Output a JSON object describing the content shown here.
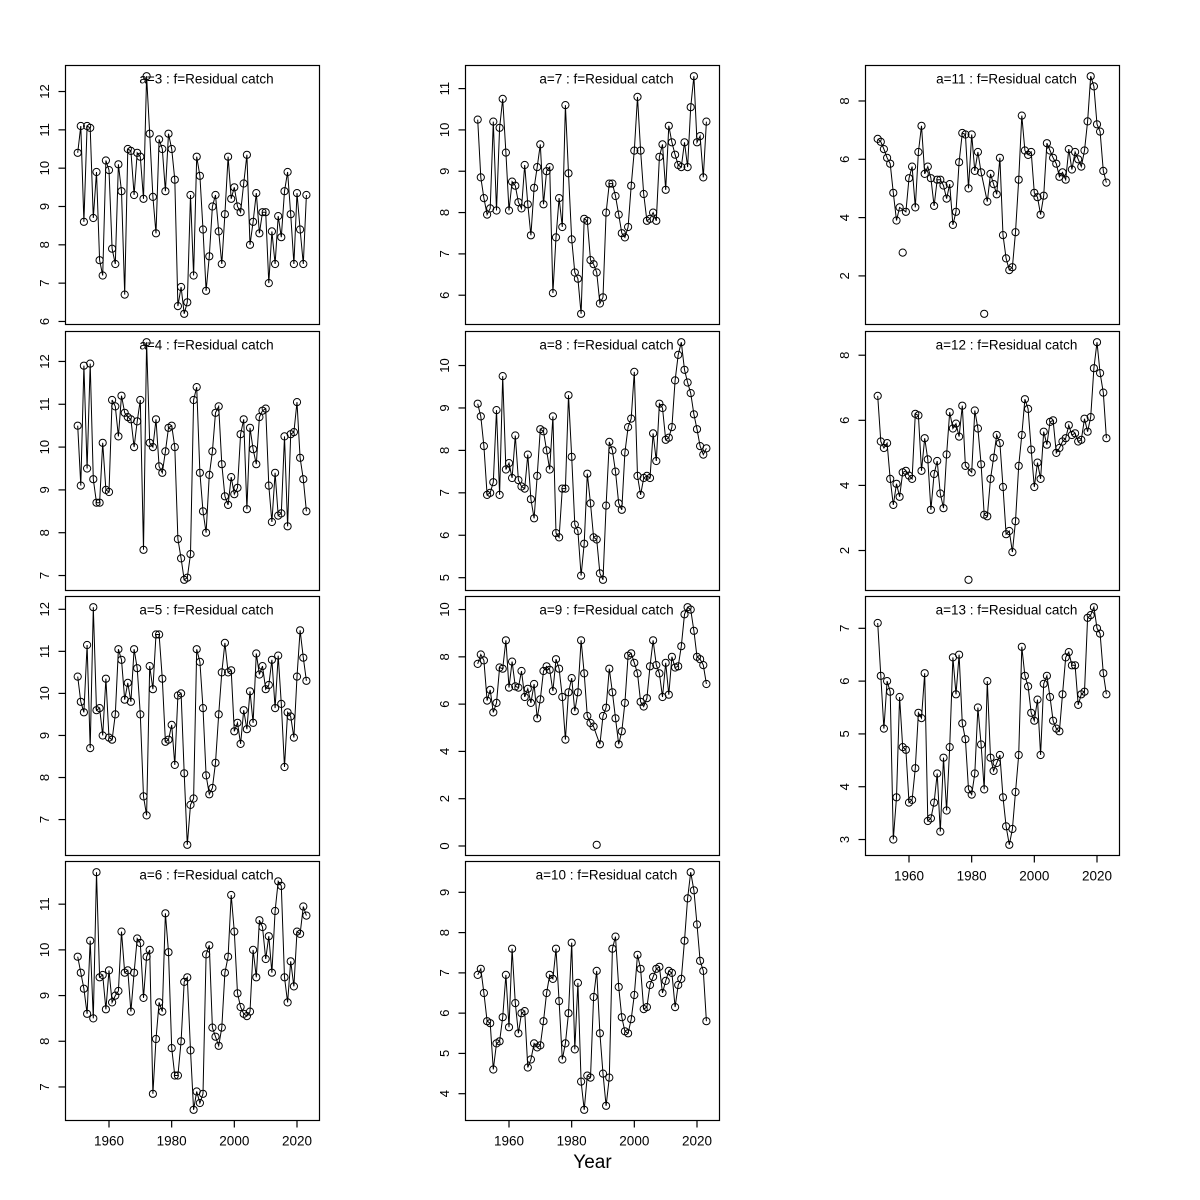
{
  "figure": {
    "xlabel": "Year",
    "x_ticks": [
      1960,
      1980,
      2000,
      2020
    ],
    "start_year": 1950,
    "end_year": 2023,
    "title_color": "#878787",
    "axis_color": "#000000",
    "background": "#ffffff"
  },
  "chart_data": {
    "type": "scatter+line",
    "x_axis": "Year",
    "x_range": [
      1950,
      2023
    ],
    "panels": [
      {
        "id": "a3",
        "title": "a=3  :  f=Residual catch",
        "col": 1,
        "row": 1,
        "show_xaxis": false,
        "ylim": [
          6.2,
          12.4
        ],
        "yticks": [
          6,
          7,
          8,
          9,
          10,
          11,
          12
        ],
        "outlier_years": [],
        "values": [
          10.4,
          11.1,
          8.6,
          11.1,
          11.05,
          8.7,
          9.9,
          7.6,
          7.2,
          10.2,
          9.95,
          7.9,
          7.5,
          10.1,
          9.4,
          6.7,
          10.5,
          10.45,
          9.3,
          10.4,
          10.3,
          9.2,
          12.4,
          10.9,
          9.25,
          8.3,
          10.75,
          10.5,
          9.4,
          10.9,
          10.5,
          9.7,
          6.4,
          6.9,
          6.2,
          6.5,
          9.3,
          7.2,
          10.3,
          9.8,
          8.4,
          6.8,
          7.7,
          9.0,
          9.3,
          8.35,
          7.5,
          8.8,
          10.3,
          9.2,
          9.5,
          9.0,
          8.85,
          9.6,
          10.35,
          8.0,
          8.6,
          9.35,
          8.3,
          8.85,
          8.85,
          7.0,
          8.35,
          7.5,
          8.75,
          8.2,
          9.4,
          9.9,
          8.8,
          7.5,
          9.35,
          8.4,
          7.5,
          9.3
        ]
      },
      {
        "id": "a4",
        "title": "a=4  :  f=Residual catch",
        "col": 1,
        "row": 2,
        "show_xaxis": false,
        "ylim": [
          6.9,
          12.45
        ],
        "yticks": [
          7,
          8,
          9,
          10,
          11,
          12
        ],
        "outlier_years": [],
        "values": [
          10.5,
          9.1,
          11.9,
          9.5,
          11.95,
          9.25,
          8.7,
          8.7,
          10.1,
          9.0,
          8.95,
          11.1,
          10.95,
          10.25,
          11.2,
          10.8,
          10.7,
          10.65,
          10.0,
          10.6,
          11.1,
          7.6,
          12.45,
          10.1,
          10.0,
          10.65,
          9.55,
          9.4,
          9.9,
          10.45,
          10.5,
          10.0,
          7.85,
          7.4,
          6.9,
          6.95,
          7.5,
          11.1,
          11.4,
          9.4,
          8.5,
          8.0,
          9.35,
          9.9,
          10.8,
          10.95,
          9.6,
          8.85,
          8.65,
          9.3,
          8.9,
          9.05,
          10.3,
          10.65,
          8.55,
          10.45,
          9.95,
          9.6,
          10.7,
          10.85,
          10.9,
          9.1,
          8.25,
          9.4,
          8.4,
          8.45,
          10.25,
          8.15,
          10.3,
          10.35,
          11.05,
          9.75,
          9.25,
          8.5
        ]
      },
      {
        "id": "a5",
        "title": "a=5  :  f=Residual catch",
        "col": 1,
        "row": 3,
        "show_xaxis": false,
        "ylim": [
          6.4,
          12.05
        ],
        "yticks": [
          7,
          8,
          9,
          10,
          11,
          12
        ],
        "outlier_years": [],
        "values": [
          10.4,
          9.8,
          9.55,
          11.15,
          8.7,
          12.05,
          9.6,
          9.65,
          9.0,
          10.35,
          8.95,
          8.9,
          9.5,
          11.05,
          10.8,
          9.85,
          10.25,
          9.8,
          11.05,
          10.6,
          9.5,
          7.55,
          7.1,
          10.65,
          10.1,
          11.4,
          11.4,
          10.35,
          8.85,
          8.9,
          9.25,
          8.3,
          9.95,
          10.0,
          8.1,
          6.4,
          7.35,
          7.5,
          11.05,
          10.75,
          9.65,
          8.05,
          7.6,
          7.75,
          8.35,
          9.5,
          10.5,
          11.2,
          10.5,
          10.55,
          9.1,
          9.3,
          8.8,
          9.6,
          9.15,
          10.05,
          9.3,
          10.95,
          10.45,
          10.65,
          10.1,
          10.2,
          10.8,
          9.65,
          10.9,
          9.75,
          8.25,
          9.55,
          9.45,
          8.95,
          10.4,
          11.5,
          10.85,
          10.3
        ]
      },
      {
        "id": "a6",
        "title": "a=6  :  f=Residual catch",
        "col": 1,
        "row": 4,
        "show_xaxis": true,
        "ylim": [
          6.5,
          11.7
        ],
        "yticks": [
          7,
          8,
          9,
          10,
          11
        ],
        "outlier_years": [],
        "values": [
          9.85,
          9.5,
          9.15,
          8.6,
          10.2,
          8.5,
          11.7,
          9.4,
          9.45,
          8.7,
          9.55,
          8.85,
          9.0,
          9.1,
          10.4,
          9.5,
          9.55,
          8.65,
          9.5,
          10.25,
          10.15,
          8.95,
          9.85,
          10.0,
          6.85,
          8.05,
          8.85,
          8.65,
          10.8,
          9.95,
          7.85,
          7.25,
          7.25,
          8.0,
          9.3,
          9.4,
          7.8,
          6.5,
          6.9,
          6.65,
          6.85,
          9.9,
          10.1,
          8.3,
          8.1,
          7.9,
          8.3,
          9.5,
          9.85,
          11.2,
          10.4,
          9.05,
          8.75,
          8.6,
          8.55,
          8.65,
          10.0,
          9.4,
          10.65,
          10.5,
          9.8,
          10.3,
          9.5,
          10.85,
          11.5,
          11.4,
          9.4,
          8.85,
          9.75,
          9.2,
          10.4,
          10.35,
          10.95,
          10.75
        ]
      },
      {
        "id": "a7",
        "title": "a=7  :  f=Residual catch",
        "col": 2,
        "row": 1,
        "show_xaxis": false,
        "ylim": [
          5.55,
          11.3
        ],
        "yticks": [
          6,
          7,
          8,
          9,
          10,
          11
        ],
        "outlier_years": [],
        "values": [
          10.25,
          8.85,
          8.35,
          7.95,
          8.1,
          10.2,
          8.05,
          10.05,
          10.75,
          9.45,
          8.05,
          8.75,
          8.65,
          8.25,
          8.1,
          9.15,
          8.2,
          7.45,
          8.6,
          9.1,
          9.65,
          8.2,
          9.0,
          9.1,
          6.05,
          7.4,
          8.35,
          7.65,
          10.6,
          8.95,
          7.35,
          6.55,
          6.4,
          5.55,
          7.85,
          7.8,
          6.85,
          6.75,
          6.55,
          5.8,
          5.95,
          8.0,
          8.7,
          8.7,
          8.4,
          7.95,
          7.5,
          7.4,
          7.65,
          8.65,
          9.5,
          10.8,
          9.5,
          8.45,
          7.8,
          7.85,
          8.0,
          7.8,
          9.35,
          9.65,
          8.55,
          10.1,
          9.7,
          9.4,
          9.15,
          9.1,
          9.7,
          9.1,
          10.55,
          11.3,
          9.7,
          9.85,
          8.85,
          10.2
        ]
      },
      {
        "id": "a8",
        "title": "a=8  :  f=Residual catch",
        "col": 2,
        "row": 2,
        "show_xaxis": false,
        "ylim": [
          4.95,
          10.55
        ],
        "yticks": [
          5,
          6,
          7,
          8,
          9,
          10
        ],
        "outlier_years": [],
        "values": [
          9.1,
          8.8,
          8.1,
          6.95,
          7.0,
          7.25,
          8.95,
          6.95,
          9.75,
          7.55,
          7.7,
          7.35,
          8.35,
          7.3,
          7.15,
          7.1,
          7.9,
          6.85,
          6.4,
          7.4,
          8.5,
          8.45,
          8.0,
          7.55,
          8.8,
          6.05,
          5.95,
          7.1,
          7.1,
          9.3,
          7.85,
          6.25,
          6.1,
          5.05,
          5.8,
          7.45,
          6.75,
          5.95,
          5.9,
          5.1,
          4.95,
          6.7,
          8.2,
          8.0,
          7.5,
          6.75,
          6.6,
          7.95,
          8.55,
          8.75,
          9.85,
          7.4,
          6.95,
          7.35,
          7.4,
          7.35,
          8.4,
          7.75,
          9.1,
          9.0,
          8.25,
          8.3,
          8.55,
          9.65,
          10.25,
          10.55,
          9.9,
          9.6,
          9.35,
          8.85,
          8.5,
          8.1,
          7.9,
          8.05
        ]
      },
      {
        "id": "a9",
        "title": "a=9  :  f=Residual catch",
        "col": 2,
        "row": 3,
        "show_xaxis": false,
        "ylim": [
          0.05,
          10.1
        ],
        "yticks": [
          0,
          2,
          4,
          6,
          8,
          10
        ],
        "outlier_years": [
          1988
        ],
        "values": [
          7.7,
          8.1,
          7.85,
          6.15,
          6.6,
          5.65,
          6.05,
          7.55,
          7.5,
          8.7,
          6.7,
          7.8,
          6.75,
          6.7,
          7.4,
          6.3,
          6.65,
          6.05,
          6.85,
          5.4,
          6.2,
          7.4,
          7.6,
          7.45,
          6.55,
          7.9,
          7.5,
          6.3,
          4.5,
          6.5,
          7.1,
          5.7,
          6.5,
          8.7,
          7.3,
          5.5,
          5.2,
          5.05,
          0.05,
          4.3,
          5.5,
          5.85,
          7.5,
          6.5,
          5.4,
          4.3,
          4.85,
          6.05,
          8.05,
          8.15,
          7.75,
          7.3,
          6.1,
          5.9,
          6.25,
          7.6,
          8.7,
          7.65,
          7.3,
          6.3,
          7.75,
          6.4,
          8.0,
          7.55,
          7.6,
          8.45,
          9.8,
          10.1,
          10.0,
          9.1,
          8.0,
          7.9,
          7.65,
          6.85
        ]
      },
      {
        "id": "a10",
        "title": "a=10  :  f=Residual catch",
        "col": 2,
        "row": 4,
        "show_xaxis": true,
        "ylim": [
          3.6,
          9.5
        ],
        "yticks": [
          4,
          5,
          6,
          7,
          8,
          9
        ],
        "outlier_years": [],
        "values": [
          6.95,
          7.1,
          6.5,
          5.8,
          5.75,
          4.6,
          5.25,
          5.3,
          5.9,
          6.95,
          5.65,
          7.6,
          6.25,
          5.5,
          6.0,
          6.05,
          4.65,
          4.85,
          5.25,
          5.15,
          5.2,
          5.8,
          6.5,
          6.95,
          6.85,
          7.6,
          6.3,
          4.85,
          5.25,
          6.0,
          7.75,
          5.1,
          6.75,
          4.3,
          3.6,
          4.45,
          4.4,
          6.4,
          7.05,
          5.5,
          4.5,
          3.7,
          4.4,
          7.6,
          7.9,
          6.65,
          5.9,
          5.55,
          5.5,
          5.85,
          6.45,
          7.45,
          7.1,
          6.1,
          6.15,
          6.7,
          6.9,
          7.1,
          7.15,
          6.5,
          6.8,
          7.05,
          7.0,
          6.15,
          6.7,
          6.85,
          7.8,
          8.85,
          9.5,
          9.05,
          8.2,
          7.3,
          7.05,
          5.8
        ]
      },
      {
        "id": "a11",
        "title": "a=11  :  f=Residual catch",
        "col": 3,
        "row": 1,
        "show_xaxis": false,
        "ylim": [
          0.7,
          8.85
        ],
        "yticks": [
          2,
          4,
          6,
          8
        ],
        "outlier_years": [
          1958,
          1984
        ],
        "values": [
          6.7,
          6.6,
          6.35,
          6.05,
          5.85,
          4.85,
          3.9,
          4.35,
          2.8,
          4.2,
          5.35,
          5.75,
          4.35,
          6.25,
          7.15,
          5.5,
          5.75,
          5.35,
          4.4,
          5.3,
          5.3,
          5.1,
          4.65,
          5.15,
          3.75,
          4.2,
          5.9,
          6.9,
          6.85,
          5.0,
          6.85,
          5.6,
          6.25,
          5.55,
          0.7,
          4.55,
          5.5,
          5.15,
          4.8,
          6.05,
          3.4,
          2.6,
          2.2,
          2.3,
          3.5,
          5.3,
          7.5,
          6.3,
          6.15,
          6.25,
          4.85,
          4.7,
          4.1,
          4.75,
          6.55,
          6.3,
          6.05,
          5.85,
          5.4,
          5.55,
          5.3,
          6.35,
          5.65,
          6.25,
          6.0,
          5.75,
          6.3,
          7.3,
          8.85,
          8.5,
          7.2,
          6.95,
          5.6,
          5.2
        ]
      },
      {
        "id": "a12",
        "title": "a=12  :  f=Residual catch",
        "col": 3,
        "row": 2,
        "show_xaxis": false,
        "ylim": [
          1.1,
          8.4
        ],
        "yticks": [
          2,
          4,
          6,
          8
        ],
        "outlier_years": [
          1979
        ],
        "values": [
          6.75,
          5.35,
          5.15,
          5.3,
          4.2,
          3.4,
          4.05,
          3.65,
          4.4,
          4.45,
          4.3,
          4.2,
          6.2,
          6.15,
          4.45,
          5.45,
          4.8,
          3.25,
          4.35,
          4.75,
          3.75,
          3.3,
          4.95,
          6.25,
          5.75,
          5.9,
          5.5,
          6.45,
          4.6,
          1.1,
          4.4,
          6.3,
          5.75,
          4.65,
          3.1,
          3.05,
          4.2,
          4.85,
          5.55,
          5.3,
          3.95,
          2.5,
          2.6,
          1.95,
          2.9,
          4.6,
          5.55,
          6.65,
          6.35,
          5.1,
          3.95,
          4.7,
          4.2,
          5.65,
          5.25,
          5.95,
          6.0,
          5.0,
          5.15,
          5.35,
          5.45,
          5.85,
          5.55,
          5.6,
          5.35,
          5.4,
          6.05,
          5.65,
          6.1,
          7.6,
          8.4,
          7.45,
          6.85,
          5.45
        ]
      },
      {
        "id": "a13",
        "title": "a=13  :  f=Residual catch",
        "col": 3,
        "row": 3,
        "show_xaxis": true,
        "ylim": [
          2.9,
          7.4
        ],
        "yticks": [
          3,
          4,
          5,
          6,
          7
        ],
        "outlier_years": [],
        "values": [
          7.1,
          6.1,
          5.1,
          6.0,
          5.8,
          3.0,
          3.8,
          5.7,
          4.75,
          4.7,
          3.7,
          3.75,
          4.35,
          5.4,
          5.3,
          6.15,
          3.35,
          3.4,
          3.7,
          4.25,
          3.15,
          4.55,
          3.55,
          4.75,
          6.45,
          5.75,
          6.5,
          5.2,
          4.9,
          3.95,
          3.85,
          4.25,
          5.5,
          4.8,
          3.95,
          6.0,
          4.55,
          4.3,
          4.45,
          4.6,
          3.8,
          3.25,
          2.9,
          3.2,
          3.9,
          4.6,
          6.65,
          6.1,
          5.9,
          5.4,
          5.25,
          5.65,
          4.6,
          5.95,
          6.1,
          5.7,
          5.25,
          5.1,
          5.05,
          5.75,
          6.45,
          6.55,
          6.3,
          6.3,
          5.55,
          5.75,
          5.8,
          7.2,
          7.25,
          7.4,
          7.0,
          6.9,
          6.15,
          5.75
        ]
      }
    ]
  }
}
